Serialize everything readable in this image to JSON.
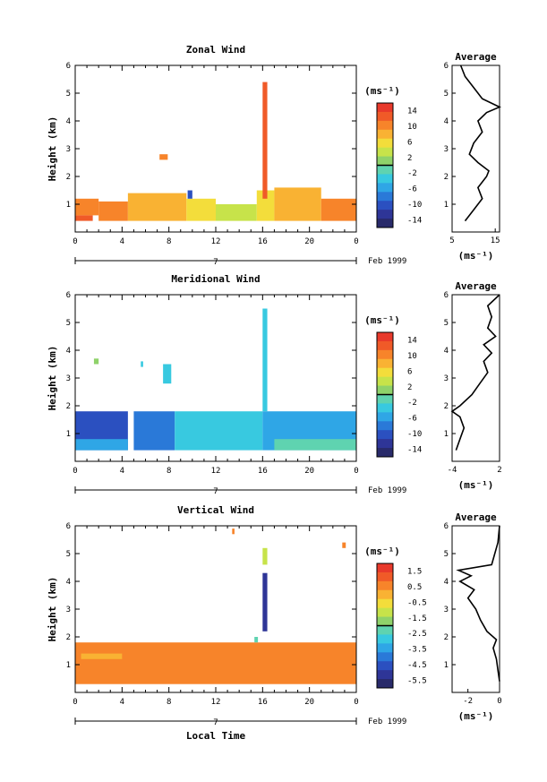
{
  "chart_data": [
    {
      "type": "heatmap",
      "title": "Zonal Wind",
      "xlabel": "",
      "ylabel": "Height (km)",
      "xlim": [
        0,
        24
      ],
      "ylim": [
        0,
        6
      ],
      "xticks": [
        "0",
        "4",
        "8",
        "12",
        "16",
        "20",
        "0"
      ],
      "yticks": [
        "1",
        "2",
        "3",
        "4",
        "5",
        "6"
      ],
      "day_label": "7",
      "month_label": "Feb 1999",
      "colorbar": {
        "unit": "(ms⁻¹)",
        "range": [
          -16,
          16
        ],
        "ticks": [
          "14",
          "10",
          "6",
          "2",
          "-2",
          "-6",
          "-10",
          "-14"
        ],
        "tick_values": [
          14,
          10,
          6,
          2,
          -2,
          -6,
          -10,
          -14
        ]
      },
      "regions": [
        {
          "x": [
            0.0,
            1.5
          ],
          "y": [
            0.4,
            0.6
          ],
          "value": 14
        },
        {
          "x": [
            0.0,
            2.0
          ],
          "y": [
            0.6,
            1.2
          ],
          "value": 12
        },
        {
          "x": [
            2.0,
            4.5
          ],
          "y": [
            0.4,
            1.1
          ],
          "value": 10
        },
        {
          "x": [
            4.5,
            9.5
          ],
          "y": [
            0.4,
            1.4
          ],
          "value": 8
        },
        {
          "x": [
            9.5,
            12.0
          ],
          "y": [
            0.4,
            1.2
          ],
          "value": 6
        },
        {
          "x": [
            12.0,
            15.5
          ],
          "y": [
            0.4,
            1.0
          ],
          "value": 4
        },
        {
          "x": [
            15.5,
            17.0
          ],
          "y": [
            0.4,
            1.5
          ],
          "value": 6
        },
        {
          "x": [
            17.0,
            21.0
          ],
          "y": [
            0.4,
            1.6
          ],
          "value": 8
        },
        {
          "x": [
            21.0,
            24.0
          ],
          "y": [
            0.4,
            1.2
          ],
          "value": 12
        },
        {
          "x": [
            7.2,
            7.9
          ],
          "y": [
            2.6,
            2.8
          ],
          "value": 10
        },
        {
          "x": [
            16.0,
            16.4
          ],
          "y": [
            1.2,
            5.4
          ],
          "value": 13
        },
        {
          "x": [
            9.6,
            10.0
          ],
          "y": [
            1.2,
            1.5
          ],
          "value": -10
        }
      ],
      "average_profile": {
        "title": "Average",
        "xlabel": "(ms⁻¹)",
        "xlim": [
          5,
          16
        ],
        "xticks": [
          "5",
          "15"
        ],
        "heights": [
          0.4,
          0.8,
          1.2,
          1.6,
          2.0,
          2.2,
          2.5,
          2.8,
          3.2,
          3.6,
          4.0,
          4.3,
          4.5,
          4.8,
          5.2,
          5.6,
          6.0
        ],
        "values": [
          8,
          10,
          12,
          11,
          13,
          13.5,
          11,
          9,
          10,
          12,
          11,
          13,
          16,
          12,
          10,
          8,
          7
        ]
      }
    },
    {
      "type": "heatmap",
      "title": "Meridional Wind",
      "xlabel": "",
      "ylabel": "Height (km)",
      "xlim": [
        0,
        24
      ],
      "ylim": [
        0,
        6
      ],
      "xticks": [
        "0",
        "4",
        "8",
        "12",
        "16",
        "20",
        "0"
      ],
      "yticks": [
        "1",
        "2",
        "3",
        "4",
        "5",
        "6"
      ],
      "day_label": "7",
      "month_label": "Feb 1999",
      "colorbar": {
        "unit": "(ms⁻¹)",
        "range": [
          -16,
          16
        ],
        "ticks": [
          "14",
          "10",
          "6",
          "2",
          "-2",
          "-6",
          "-10",
          "-14"
        ],
        "tick_values": [
          14,
          10,
          6,
          2,
          -2,
          -6,
          -10,
          -14
        ]
      },
      "regions": [
        {
          "x": [
            0.0,
            4.5
          ],
          "y": [
            0.4,
            1.8
          ],
          "value": -10
        },
        {
          "x": [
            0.0,
            4.5
          ],
          "y": [
            0.4,
            0.8
          ],
          "value": -6
        },
        {
          "x": [
            5.0,
            8.5
          ],
          "y": [
            0.4,
            1.8
          ],
          "value": -8
        },
        {
          "x": [
            8.5,
            16.0
          ],
          "y": [
            0.4,
            1.8
          ],
          "value": -4
        },
        {
          "x": [
            16.0,
            24.0
          ],
          "y": [
            0.4,
            1.8
          ],
          "value": -6
        },
        {
          "x": [
            17.0,
            24.0
          ],
          "y": [
            0.4,
            0.8
          ],
          "value": -2
        },
        {
          "x": [
            7.5,
            8.2
          ],
          "y": [
            2.8,
            3.5
          ],
          "value": -3
        },
        {
          "x": [
            16.0,
            16.4
          ],
          "y": [
            1.8,
            5.5
          ],
          "value": -4
        },
        {
          "x": [
            1.6,
            2.0
          ],
          "y": [
            3.5,
            3.7
          ],
          "value": 1
        },
        {
          "x": [
            5.6,
            5.8
          ],
          "y": [
            3.4,
            3.6
          ],
          "value": -3
        }
      ],
      "average_profile": {
        "title": "Average",
        "xlabel": "(ms⁻¹)",
        "xlim": [
          -4,
          2
        ],
        "xticks": [
          "-4",
          "2"
        ],
        "heights": [
          0.4,
          0.8,
          1.2,
          1.6,
          1.8,
          2.0,
          2.4,
          2.8,
          3.2,
          3.6,
          3.9,
          4.2,
          4.5,
          4.8,
          5.2,
          5.6,
          6.0
        ],
        "values": [
          -3.5,
          -3.0,
          -2.5,
          -3.0,
          -4.0,
          -3.0,
          -1.5,
          -0.5,
          0.5,
          0.0,
          1.0,
          0.0,
          1.5,
          0.5,
          1.0,
          0.5,
          2.0
        ]
      }
    },
    {
      "type": "heatmap",
      "title": "Vertical Wind",
      "xlabel": "Local Time",
      "ylabel": "Height (km)",
      "xlim": [
        0,
        24
      ],
      "ylim": [
        0,
        6
      ],
      "xticks": [
        "0",
        "4",
        "8",
        "12",
        "16",
        "20",
        "0"
      ],
      "yticks": [
        "1",
        "2",
        "3",
        "4",
        "5",
        "6"
      ],
      "day_label": "7",
      "month_label": "Feb 1999",
      "colorbar": {
        "unit": "(ms⁻¹)",
        "range": [
          -6,
          2
        ],
        "ticks": [
          "1.5",
          "0.5",
          "-0.5",
          "-1.5",
          "-2.5",
          "-3.5",
          "-4.5",
          "-5.5"
        ],
        "tick_values": [
          1.5,
          0.5,
          -0.5,
          -1.5,
          -2.5,
          -3.5,
          -4.5,
          -5.5
        ]
      },
      "regions": [
        {
          "x": [
            0.0,
            24.0
          ],
          "y": [
            0.3,
            1.8
          ],
          "value": 0.5
        },
        {
          "x": [
            0.5,
            4.0
          ],
          "y": [
            1.2,
            1.4
          ],
          "value": 0.3
        },
        {
          "x": [
            16.0,
            16.4
          ],
          "y": [
            2.2,
            4.3
          ],
          "value": -5.5
        },
        {
          "x": [
            16.0,
            16.4
          ],
          "y": [
            4.6,
            5.2
          ],
          "value": -1.2
        },
        {
          "x": [
            13.4,
            13.6
          ],
          "y": [
            5.7,
            5.9
          ],
          "value": 0.5
        },
        {
          "x": [
            22.8,
            23.1
          ],
          "y": [
            5.2,
            5.4
          ],
          "value": 0.5
        },
        {
          "x": [
            15.3,
            15.6
          ],
          "y": [
            1.8,
            2.0
          ],
          "value": -2.5
        }
      ],
      "average_profile": {
        "title": "Average",
        "xlabel": "(ms⁻¹)",
        "xlim": [
          -3,
          0
        ],
        "xticks": [
          "-2",
          "0"
        ],
        "heights": [
          0.4,
          0.8,
          1.2,
          1.6,
          1.9,
          2.2,
          2.6,
          3.0,
          3.4,
          3.7,
          4.0,
          4.2,
          4.4,
          4.6,
          5.0,
          5.4,
          6.0
        ],
        "values": [
          0.0,
          -0.1,
          -0.2,
          -0.4,
          -0.2,
          -0.8,
          -1.2,
          -1.5,
          -2.0,
          -1.6,
          -2.5,
          -1.8,
          -2.6,
          -0.5,
          -0.3,
          -0.1,
          0.0
        ]
      }
    }
  ]
}
